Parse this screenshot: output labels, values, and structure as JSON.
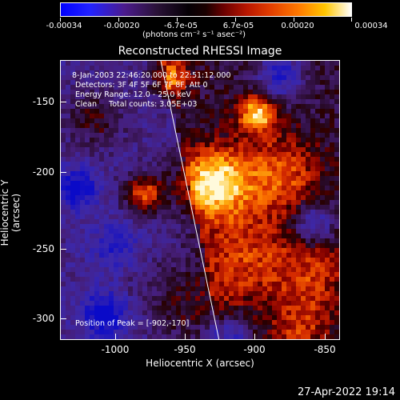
{
  "colorbar": {
    "labels": [
      "-0.00034",
      "-0.00020",
      "-6.7e-05",
      "6.7e-05",
      "0.00020",
      "0.00034"
    ],
    "units": "(photons cm⁻² s⁻¹ asec⁻²)"
  },
  "title": "Reconstructed RHESSI Image",
  "info": {
    "time": "8-Jan-2003 22:46:20.000 to 22:51:12.000",
    "detectors": "Detectors: 3F 4F 5F 6F 7F 8F, Att 0",
    "energy": "Energy Range: 12.0 - 25.0 keV",
    "clean": "Clean     Total counts: 3.05E+03",
    "peak": "Position of Peak = [-902,-170]"
  },
  "axes": {
    "x_title": "Heliocentric X (arcsec)",
    "y_title": "Heliocentric Y (arcsec)",
    "x_ticks": [
      "-1000",
      "-950",
      "-900",
      "-850"
    ],
    "y_ticks": [
      "-150",
      "-200",
      "-250",
      "-300"
    ]
  },
  "timestamp": "27-Apr-2022 19:14"
}
